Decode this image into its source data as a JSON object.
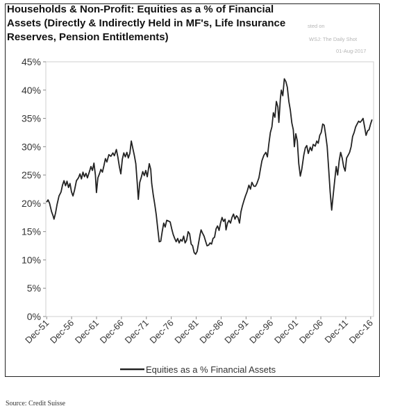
{
  "watermark": {
    "line1": "sted on",
    "line2": "WSJ: The Daily Shot",
    "line3": "01-Aug-2017"
  },
  "source": "Source: Credit Suisse",
  "chart_data": {
    "type": "line",
    "title_lines": [
      "Households & Non-Profit: Equities as a % of Financial",
      "Assets (Directly & Indirectly Held in MF's, Life Insurance",
      "Reserves, Pension Entitlements)"
    ],
    "ylim": [
      0,
      45
    ],
    "yticks": [
      "0%",
      "5%",
      "10%",
      "15%",
      "20%",
      "25%",
      "30%",
      "35%",
      "40%",
      "45%"
    ],
    "xlim": [
      1951.75,
      2017.5
    ],
    "xticks": [
      {
        "label": "Dec-51",
        "value": 1951.92
      },
      {
        "label": "Dec-56",
        "value": 1956.92
      },
      {
        "label": "Dec-61",
        "value": 1961.92
      },
      {
        "label": "Dec-66",
        "value": 1966.92
      },
      {
        "label": "Dec-71",
        "value": 1971.92
      },
      {
        "label": "Dec-76",
        "value": 1976.92
      },
      {
        "label": "Dec-81",
        "value": 1981.92
      },
      {
        "label": "Dec-86",
        "value": 1986.92
      },
      {
        "label": "Dec-91",
        "value": 1991.92
      },
      {
        "label": "Dec-96",
        "value": 1996.92
      },
      {
        "label": "Dec-01",
        "value": 2001.92
      },
      {
        "label": "Dec-06",
        "value": 2006.92
      },
      {
        "label": "Dec-11",
        "value": 2011.92
      },
      {
        "label": "Dec-16",
        "value": 2016.92
      }
    ],
    "legend_position": "bottom",
    "series": [
      {
        "name": "Equities as a % Financial Assets",
        "color": "#222222",
        "points": [
          [
            1951.9,
            20.2
          ],
          [
            1952.2,
            20.6
          ],
          [
            1952.5,
            20.0
          ],
          [
            1952.9,
            18.5
          ],
          [
            1953.2,
            17.8
          ],
          [
            1953.4,
            17.2
          ],
          [
            1953.7,
            18.3
          ],
          [
            1954.0,
            19.8
          ],
          [
            1954.4,
            21.3
          ],
          [
            1954.8,
            22.0
          ],
          [
            1955.1,
            23.2
          ],
          [
            1955.4,
            24.0
          ],
          [
            1955.7,
            23.1
          ],
          [
            1956.0,
            23.9
          ],
          [
            1956.3,
            22.8
          ],
          [
            1956.6,
            23.5
          ],
          [
            1956.9,
            22.0
          ],
          [
            1957.2,
            21.3
          ],
          [
            1957.5,
            22.3
          ],
          [
            1957.9,
            24.0
          ],
          [
            1958.3,
            24.5
          ],
          [
            1958.6,
            25.2
          ],
          [
            1958.9,
            24.3
          ],
          [
            1959.2,
            25.5
          ],
          [
            1959.5,
            24.7
          ],
          [
            1959.8,
            25.3
          ],
          [
            1960.1,
            24.5
          ],
          [
            1960.5,
            25.6
          ],
          [
            1960.8,
            26.5
          ],
          [
            1961.1,
            25.8
          ],
          [
            1961.4,
            27.1
          ],
          [
            1961.7,
            25.0
          ],
          [
            1961.9,
            21.9
          ],
          [
            1962.2,
            24.5
          ],
          [
            1962.5,
            25.2
          ],
          [
            1962.8,
            26.0
          ],
          [
            1963.1,
            25.5
          ],
          [
            1963.4,
            26.6
          ],
          [
            1963.7,
            27.9
          ],
          [
            1964.0,
            27.3
          ],
          [
            1964.4,
            28.6
          ],
          [
            1964.8,
            28.3
          ],
          [
            1965.2,
            28.9
          ],
          [
            1965.5,
            28.4
          ],
          [
            1965.9,
            29.5
          ],
          [
            1966.2,
            28.2
          ],
          [
            1966.5,
            26.5
          ],
          [
            1966.8,
            25.2
          ],
          [
            1967.1,
            27.8
          ],
          [
            1967.4,
            28.9
          ],
          [
            1967.7,
            28.2
          ],
          [
            1968.0,
            29.0
          ],
          [
            1968.3,
            28.0
          ],
          [
            1968.6,
            28.8
          ],
          [
            1968.9,
            31.0
          ],
          [
            1969.2,
            29.7
          ],
          [
            1969.5,
            28.5
          ],
          [
            1969.8,
            27.0
          ],
          [
            1970.1,
            23.5
          ],
          [
            1970.3,
            20.7
          ],
          [
            1970.6,
            23.7
          ],
          [
            1970.9,
            24.6
          ],
          [
            1971.2,
            25.6
          ],
          [
            1971.5,
            24.9
          ],
          [
            1971.8,
            25.8
          ],
          [
            1972.1,
            24.7
          ],
          [
            1972.5,
            27.0
          ],
          [
            1972.8,
            26.0
          ],
          [
            1973.0,
            23.5
          ],
          [
            1973.3,
            21.5
          ],
          [
            1973.6,
            19.8
          ],
          [
            1973.9,
            18.0
          ],
          [
            1974.2,
            15.5
          ],
          [
            1974.5,
            13.2
          ],
          [
            1974.8,
            13.3
          ],
          [
            1975.1,
            15.0
          ],
          [
            1975.4,
            16.5
          ],
          [
            1975.7,
            15.8
          ],
          [
            1976.0,
            17.0
          ],
          [
            1976.3,
            16.9
          ],
          [
            1976.7,
            16.7
          ],
          [
            1977.0,
            15.5
          ],
          [
            1977.3,
            14.5
          ],
          [
            1977.6,
            13.8
          ],
          [
            1977.9,
            13.2
          ],
          [
            1978.2,
            13.8
          ],
          [
            1978.5,
            13.0
          ],
          [
            1978.8,
            13.6
          ],
          [
            1979.1,
            13.3
          ],
          [
            1979.4,
            14.2
          ],
          [
            1979.7,
            13.0
          ],
          [
            1980.0,
            13.5
          ],
          [
            1980.3,
            15.0
          ],
          [
            1980.6,
            14.6
          ],
          [
            1980.9,
            12.8
          ],
          [
            1981.2,
            12.5
          ],
          [
            1981.5,
            11.3
          ],
          [
            1981.8,
            11.0
          ],
          [
            1982.1,
            11.5
          ],
          [
            1982.4,
            13.0
          ],
          [
            1982.7,
            14.5
          ],
          [
            1982.9,
            15.3
          ],
          [
            1983.2,
            14.7
          ],
          [
            1983.5,
            14.2
          ],
          [
            1983.8,
            13.3
          ],
          [
            1984.1,
            12.5
          ],
          [
            1984.4,
            12.6
          ],
          [
            1984.7,
            13.0
          ],
          [
            1985.0,
            12.8
          ],
          [
            1985.3,
            13.8
          ],
          [
            1985.6,
            14.0
          ],
          [
            1985.9,
            15.5
          ],
          [
            1986.2,
            16.0
          ],
          [
            1986.5,
            15.2
          ],
          [
            1986.8,
            16.5
          ],
          [
            1987.1,
            17.5
          ],
          [
            1987.4,
            16.8
          ],
          [
            1987.7,
            17.2
          ],
          [
            1987.9,
            15.3
          ],
          [
            1988.2,
            16.5
          ],
          [
            1988.5,
            17.0
          ],
          [
            1988.8,
            16.5
          ],
          [
            1989.1,
            17.5
          ],
          [
            1989.4,
            18.1
          ],
          [
            1989.7,
            17.2
          ],
          [
            1990.0,
            17.8
          ],
          [
            1990.3,
            17.5
          ],
          [
            1990.6,
            16.5
          ],
          [
            1990.9,
            18.5
          ],
          [
            1991.2,
            19.6
          ],
          [
            1991.5,
            20.5
          ],
          [
            1991.8,
            21.3
          ],
          [
            1992.1,
            22.0
          ],
          [
            1992.5,
            23.2
          ],
          [
            1992.8,
            22.5
          ],
          [
            1993.1,
            23.7
          ],
          [
            1993.5,
            23.0
          ],
          [
            1993.8,
            23.0
          ],
          [
            1994.1,
            23.5
          ],
          [
            1994.5,
            24.5
          ],
          [
            1994.8,
            26.0
          ],
          [
            1995.1,
            27.5
          ],
          [
            1995.5,
            28.5
          ],
          [
            1995.9,
            29.0
          ],
          [
            1996.2,
            28.2
          ],
          [
            1996.5,
            30.5
          ],
          [
            1996.8,
            32.5
          ],
          [
            1997.1,
            33.5
          ],
          [
            1997.4,
            36.0
          ],
          [
            1997.7,
            35.2
          ],
          [
            1998.0,
            38.0
          ],
          [
            1998.3,
            37.0
          ],
          [
            1998.5,
            34.3
          ],
          [
            1998.8,
            38.5
          ],
          [
            1999.0,
            40.0
          ],
          [
            1999.3,
            39.0
          ],
          [
            1999.6,
            42.0
          ],
          [
            1999.9,
            41.5
          ],
          [
            2000.2,
            40.5
          ],
          [
            2000.5,
            38.0
          ],
          [
            2000.8,
            36.5
          ],
          [
            2001.1,
            34.2
          ],
          [
            2001.4,
            33.0
          ],
          [
            2001.6,
            30.0
          ],
          [
            2001.9,
            32.3
          ],
          [
            2002.2,
            31.0
          ],
          [
            2002.5,
            27.0
          ],
          [
            2002.8,
            24.8
          ],
          [
            2003.1,
            26.0
          ],
          [
            2003.5,
            28.5
          ],
          [
            2003.8,
            29.8
          ],
          [
            2004.1,
            30.2
          ],
          [
            2004.4,
            28.8
          ],
          [
            2004.8,
            29.9
          ],
          [
            2005.1,
            29.3
          ],
          [
            2005.4,
            30.4
          ],
          [
            2005.8,
            30.1
          ],
          [
            2006.1,
            31.0
          ],
          [
            2006.4,
            30.6
          ],
          [
            2006.7,
            32.0
          ],
          [
            2007.0,
            32.5
          ],
          [
            2007.3,
            34.0
          ],
          [
            2007.6,
            33.8
          ],
          [
            2007.9,
            32.0
          ],
          [
            2008.2,
            30.0
          ],
          [
            2008.5,
            26.0
          ],
          [
            2008.8,
            22.0
          ],
          [
            2009.1,
            18.8
          ],
          [
            2009.4,
            21.5
          ],
          [
            2009.7,
            24.0
          ],
          [
            2010.0,
            26.5
          ],
          [
            2010.3,
            25.0
          ],
          [
            2010.6,
            27.5
          ],
          [
            2010.9,
            29.0
          ],
          [
            2011.2,
            28.0
          ],
          [
            2011.5,
            26.5
          ],
          [
            2011.8,
            25.7
          ],
          [
            2012.1,
            28.0
          ],
          [
            2012.4,
            28.5
          ],
          [
            2012.7,
            29.0
          ],
          [
            2013.0,
            30.0
          ],
          [
            2013.3,
            31.8
          ],
          [
            2013.6,
            32.5
          ],
          [
            2013.9,
            33.5
          ],
          [
            2014.2,
            34.0
          ],
          [
            2014.5,
            34.5
          ],
          [
            2014.8,
            34.3
          ],
          [
            2015.1,
            34.6
          ],
          [
            2015.4,
            35.0
          ],
          [
            2015.7,
            33.5
          ],
          [
            2016.0,
            32.0
          ],
          [
            2016.3,
            32.8
          ],
          [
            2016.6,
            33.0
          ],
          [
            2016.9,
            34.0
          ],
          [
            2017.2,
            34.8
          ]
        ]
      }
    ]
  }
}
